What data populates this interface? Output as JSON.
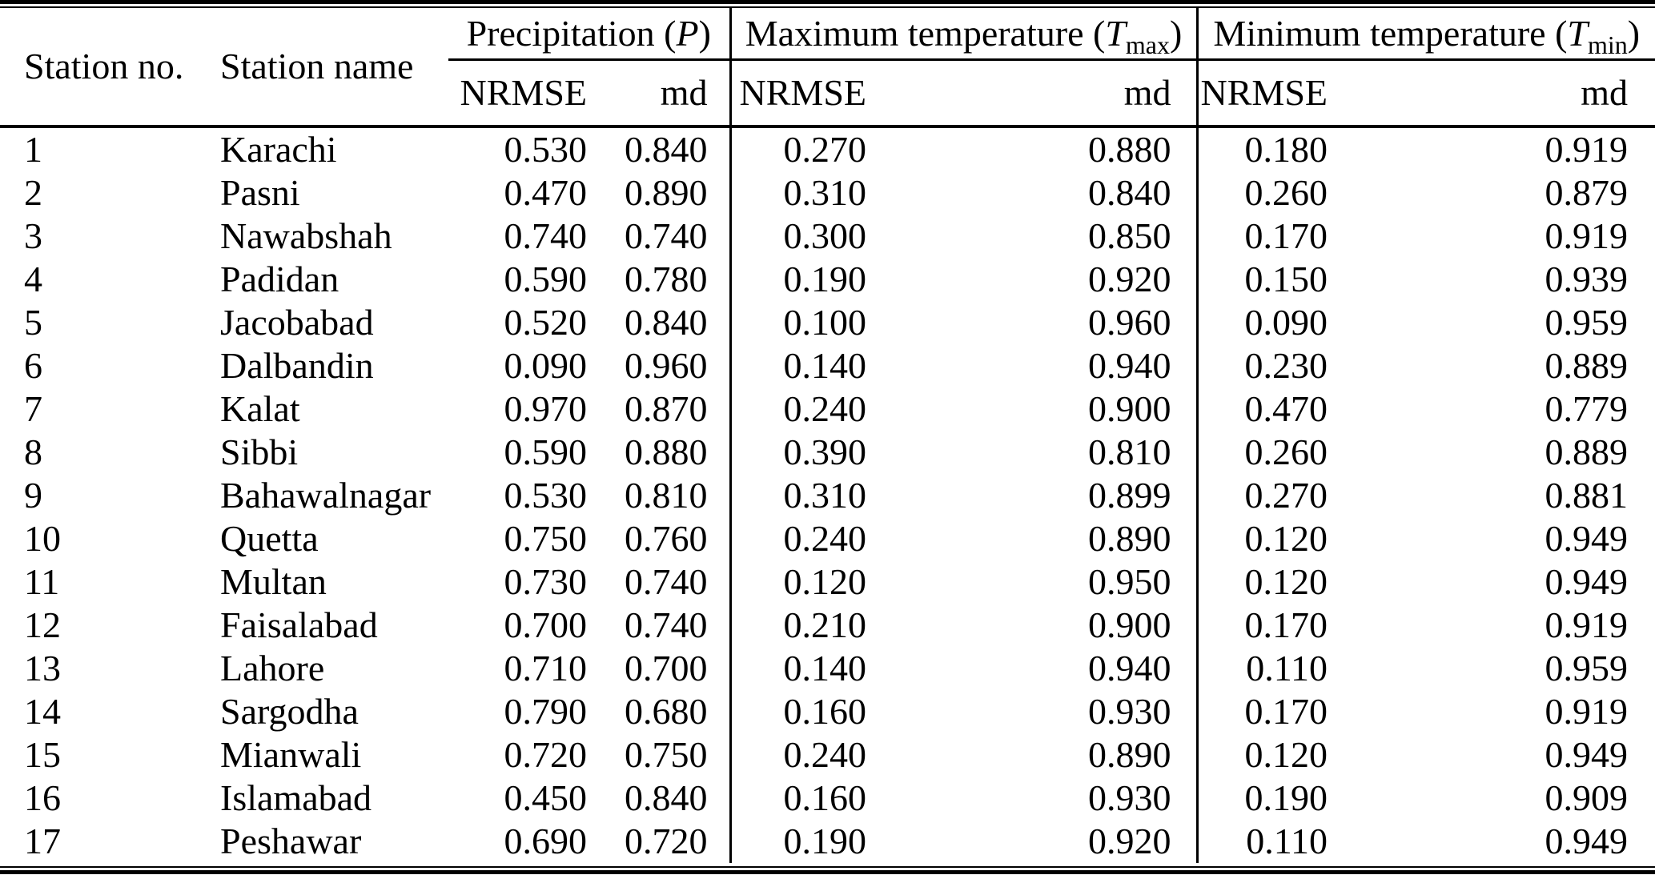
{
  "colors": {
    "text": "#000000",
    "background": "#ffffff",
    "rule": "#000000"
  },
  "table": {
    "col_headers": {
      "station_no": "Station no.",
      "station_name": "Station name"
    },
    "groups": [
      {
        "prefix": "Precipitation (",
        "symbol": "P",
        "subscript": "",
        "suffix": ")"
      },
      {
        "prefix": "Maximum temperature (",
        "symbol": "T",
        "subscript": "max",
        "suffix": ")"
      },
      {
        "prefix": "Minimum temperature (",
        "symbol": "T",
        "subscript": "min",
        "suffix": ")"
      }
    ],
    "metric_headers": [
      "NRMSE",
      "md"
    ],
    "rows": [
      {
        "no": "1",
        "name": "Karachi",
        "p_nrmse": "0.530",
        "p_md": "0.840",
        "tmax_nrmse": "0.270",
        "tmax_md": "0.880",
        "tmin_nrmse": "0.180",
        "tmin_md": "0.919"
      },
      {
        "no": "2",
        "name": "Pasni",
        "p_nrmse": "0.470",
        "p_md": "0.890",
        "tmax_nrmse": "0.310",
        "tmax_md": "0.840",
        "tmin_nrmse": "0.260",
        "tmin_md": "0.879"
      },
      {
        "no": "3",
        "name": "Nawabshah",
        "p_nrmse": "0.740",
        "p_md": "0.740",
        "tmax_nrmse": "0.300",
        "tmax_md": "0.850",
        "tmin_nrmse": "0.170",
        "tmin_md": "0.919"
      },
      {
        "no": "4",
        "name": "Padidan",
        "p_nrmse": "0.590",
        "p_md": "0.780",
        "tmax_nrmse": "0.190",
        "tmax_md": "0.920",
        "tmin_nrmse": "0.150",
        "tmin_md": "0.939"
      },
      {
        "no": "5",
        "name": "Jacobabad",
        "p_nrmse": "0.520",
        "p_md": "0.840",
        "tmax_nrmse": "0.100",
        "tmax_md": "0.960",
        "tmin_nrmse": "0.090",
        "tmin_md": "0.959"
      },
      {
        "no": "6",
        "name": "Dalbandin",
        "p_nrmse": "0.090",
        "p_md": "0.960",
        "tmax_nrmse": "0.140",
        "tmax_md": "0.940",
        "tmin_nrmse": "0.230",
        "tmin_md": "0.889"
      },
      {
        "no": "7",
        "name": "Kalat",
        "p_nrmse": "0.970",
        "p_md": "0.870",
        "tmax_nrmse": "0.240",
        "tmax_md": "0.900",
        "tmin_nrmse": "0.470",
        "tmin_md": "0.779"
      },
      {
        "no": "8",
        "name": "Sibbi",
        "p_nrmse": "0.590",
        "p_md": "0.880",
        "tmax_nrmse": "0.390",
        "tmax_md": "0.810",
        "tmin_nrmse": "0.260",
        "tmin_md": "0.889"
      },
      {
        "no": "9",
        "name": "Bahawalnagar",
        "p_nrmse": "0.530",
        "p_md": "0.810",
        "tmax_nrmse": "0.310",
        "tmax_md": "0.899",
        "tmin_nrmse": "0.270",
        "tmin_md": "0.881"
      },
      {
        "no": "10",
        "name": "Quetta",
        "p_nrmse": "0.750",
        "p_md": "0.760",
        "tmax_nrmse": "0.240",
        "tmax_md": "0.890",
        "tmin_nrmse": "0.120",
        "tmin_md": "0.949"
      },
      {
        "no": "11",
        "name": "Multan",
        "p_nrmse": "0.730",
        "p_md": "0.740",
        "tmax_nrmse": "0.120",
        "tmax_md": "0.950",
        "tmin_nrmse": "0.120",
        "tmin_md": "0.949"
      },
      {
        "no": "12",
        "name": "Faisalabad",
        "p_nrmse": "0.700",
        "p_md": "0.740",
        "tmax_nrmse": "0.210",
        "tmax_md": "0.900",
        "tmin_nrmse": "0.170",
        "tmin_md": "0.919"
      },
      {
        "no": "13",
        "name": "Lahore",
        "p_nrmse": "0.710",
        "p_md": "0.700",
        "tmax_nrmse": "0.140",
        "tmax_md": "0.940",
        "tmin_nrmse": "0.110",
        "tmin_md": "0.959"
      },
      {
        "no": "14",
        "name": "Sargodha",
        "p_nrmse": "0.790",
        "p_md": "0.680",
        "tmax_nrmse": "0.160",
        "tmax_md": "0.930",
        "tmin_nrmse": "0.170",
        "tmin_md": "0.919"
      },
      {
        "no": "15",
        "name": "Mianwali",
        "p_nrmse": "0.720",
        "p_md": "0.750",
        "tmax_nrmse": "0.240",
        "tmax_md": "0.890",
        "tmin_nrmse": "0.120",
        "tmin_md": "0.949"
      },
      {
        "no": "16",
        "name": "Islamabad",
        "p_nrmse": "0.450",
        "p_md": "0.840",
        "tmax_nrmse": "0.160",
        "tmax_md": "0.930",
        "tmin_nrmse": "0.190",
        "tmin_md": "0.909"
      },
      {
        "no": "17",
        "name": "Peshawar",
        "p_nrmse": "0.690",
        "p_md": "0.720",
        "tmax_nrmse": "0.190",
        "tmax_md": "0.920",
        "tmin_nrmse": "0.110",
        "tmin_md": "0.949"
      }
    ]
  }
}
